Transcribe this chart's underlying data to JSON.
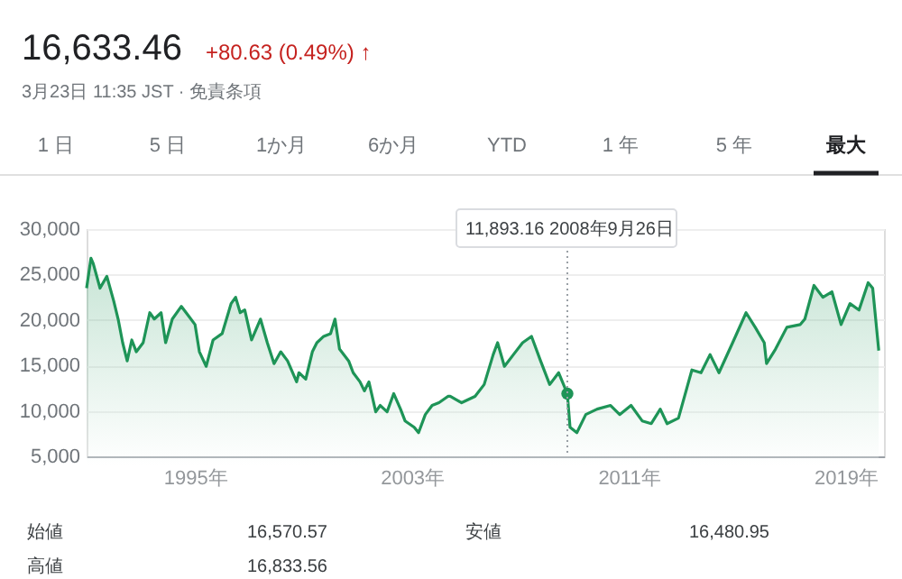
{
  "chart_data": {
    "type": "area",
    "title": "16,633.46",
    "subtitle": "+80.63 (0.49%) ↑",
    "annotations": [
      "3月23日 11:35 JST · 免責条項",
      "1 日",
      "5 日",
      "1か月",
      "6か月",
      "YTD",
      "1 年",
      "5 年",
      "最大",
      "11,893.16  2008年9月26日",
      "始値",
      "16,570.57",
      "安値",
      "16,480.95",
      "高値",
      "16,833.56"
    ],
    "x": [
      "1991-01",
      "1991-03",
      "1991-04",
      "1991-07",
      "1991-10",
      "1992-01",
      "1992-03",
      "1992-05",
      "1992-07",
      "1992-09",
      "1992-11",
      "1993-02",
      "1993-05",
      "1993-07",
      "1993-10",
      "1993-12",
      "1994-03",
      "1994-07",
      "1994-10",
      "1995-01",
      "1995-03",
      "1995-06",
      "1995-09",
      "1996-01",
      "1996-05",
      "1996-07",
      "1996-09",
      "1996-11",
      "1997-02",
      "1997-06",
      "1997-09",
      "1997-12",
      "1998-03",
      "1998-06",
      "1998-10",
      "1998-11",
      "1999-02",
      "1999-05",
      "1999-07",
      "1999-10",
      "2000-01",
      "2000-03",
      "2000-05",
      "2000-09",
      "2000-11",
      "2001-02",
      "2001-04",
      "2001-06",
      "2001-09",
      "2001-11",
      "2002-02",
      "2002-05",
      "2002-08",
      "2002-10",
      "2003-02",
      "2003-04",
      "2003-07",
      "2003-10",
      "2004-01",
      "2004-05",
      "2004-06",
      "2004-11",
      "2005-05",
      "2005-09",
      "2006-01",
      "2006-03",
      "2006-06",
      "2006-10",
      "2007-02",
      "2007-06",
      "2007-10",
      "2008-02",
      "2008-06",
      "2008-09-26",
      "2008-11",
      "2009-02",
      "2009-06",
      "2009-11",
      "2010-05",
      "2010-09",
      "2011-02",
      "2011-07",
      "2011-11",
      "2012-03",
      "2012-06",
      "2012-11",
      "2013-05",
      "2013-09",
      "2014-01",
      "2014-05",
      "2014-11",
      "2015-05",
      "2015-09",
      "2016-01",
      "2016-02",
      "2016-06",
      "2016-11",
      "2017-05",
      "2017-07",
      "2017-11",
      "2018-03",
      "2018-07",
      "2018-11",
      "2019-03",
      "2019-07",
      "2019-11",
      "2020-01",
      "2020-03-23"
    ],
    "values": [
      23500,
      26800,
      26200,
      23500,
      24800,
      22100,
      20100,
      17500,
      15500,
      17800,
      16500,
      17500,
      20800,
      20100,
      20800,
      17500,
      20100,
      21500,
      20500,
      19500,
      16500,
      14900,
      17800,
      18500,
      21800,
      22500,
      20800,
      21100,
      17800,
      20100,
      17500,
      15200,
      16500,
      15500,
      13200,
      14200,
      13500,
      16500,
      17500,
      18200,
      18500,
      20100,
      16800,
      15500,
      14200,
      13200,
      12200,
      13200,
      9900,
      10600,
      9900,
      11900,
      10200,
      8900,
      8200,
      7600,
      9600,
      10600,
      10900,
      11600,
      11600,
      10900,
      11600,
      12900,
      16200,
      17500,
      14900,
      16200,
      17500,
      18200,
      15500,
      12900,
      14200,
      11893.16,
      8200,
      7600,
      9600,
      10200,
      10600,
      9600,
      10600,
      8900,
      8600,
      10200,
      8600,
      9200,
      14500,
      14200,
      16200,
      14200,
      17500,
      20800,
      19200,
      17500,
      15200,
      16800,
      19200,
      19500,
      20100,
      23800,
      22500,
      23100,
      19500,
      21800,
      21100,
      24100,
      23500,
      16633.46
    ],
    "color": "#1e9457",
    "xlim": [
      "1991-01",
      "2020-06"
    ],
    "xticks": [
      {
        "value": "1995",
        "label": "1995年"
      },
      {
        "value": "2003",
        "label": "2003年"
      },
      {
        "value": "2011",
        "label": "2011年"
      },
      {
        "value": "2019",
        "label": "2019年"
      }
    ],
    "ylim": [
      5000,
      30000
    ],
    "yticks": [
      {
        "value": 5000,
        "label": "5,000"
      },
      {
        "value": 10000,
        "label": "10,000"
      },
      {
        "value": 15000,
        "label": "15,000"
      },
      {
        "value": 20000,
        "label": "20,000"
      },
      {
        "value": 25000,
        "label": "25,000"
      },
      {
        "value": 30000,
        "label": "30,000"
      }
    ],
    "ref_lines": [
      {
        "axis": "x",
        "value": "2008-09-26",
        "line_style": "dotted",
        "color": "#9aa0a6"
      }
    ],
    "grid": "y"
  }
}
